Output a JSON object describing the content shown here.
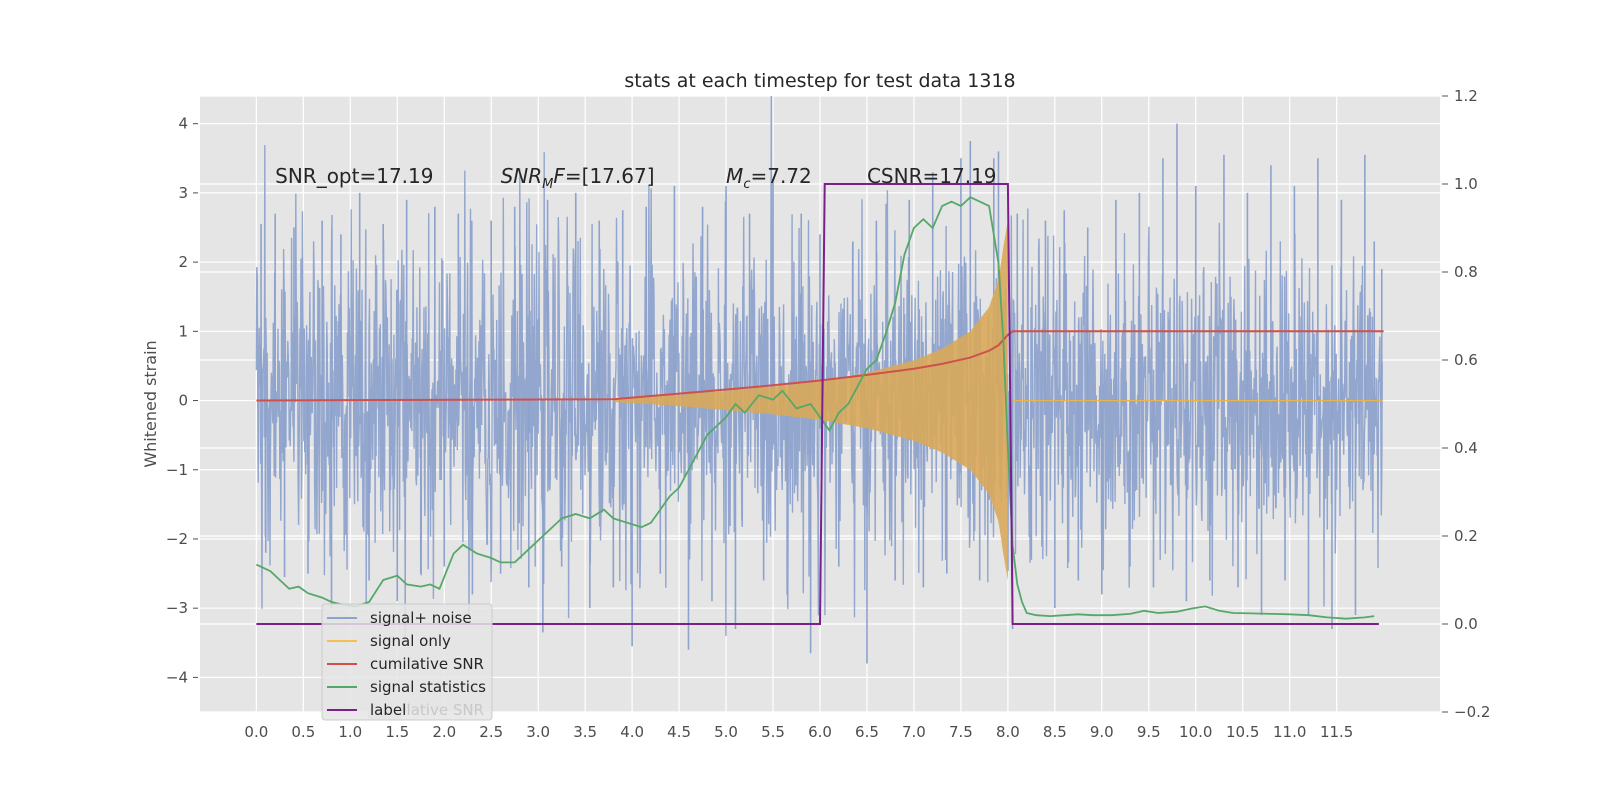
{
  "chart_data": {
    "type": "line",
    "title": "stats at each timestep for test data 1318",
    "xlabel": "",
    "ylabel": "Whitened strain",
    "xlim": [
      -0.6,
      12.6
    ],
    "ylim": [
      -4.5,
      4.4
    ],
    "y2lim": [
      -0.2,
      1.2
    ],
    "x_ticks": [
      0.0,
      0.5,
      1.0,
      1.5,
      2.0,
      2.5,
      3.0,
      3.5,
      4.0,
      4.5,
      5.0,
      5.5,
      6.0,
      6.5,
      7.0,
      7.5,
      8.0,
      8.5,
      9.0,
      9.5,
      10.0,
      10.5,
      11.0,
      11.5
    ],
    "x_tick_labels": [
      "0.0",
      "0.5",
      "1.0",
      "1.5",
      "2.0",
      "2.5",
      "3.0",
      "3.5",
      "4.0",
      "4.5",
      "5.0",
      "5.5",
      "6.0",
      "6.5",
      "7.0",
      "7.5",
      "8.0",
      "8.5",
      "9.0",
      "9.5",
      "10.0",
      "10.5",
      "11.0",
      "11.5"
    ],
    "y_ticks": [
      -4,
      -3,
      -2,
      -1,
      0,
      1,
      2,
      3,
      4
    ],
    "y_tick_labels": [
      "−4",
      "−3",
      "−2",
      "−1",
      "0",
      "1",
      "2",
      "3",
      "4"
    ],
    "y2_ticks": [
      -0.2,
      0.0,
      0.2,
      0.4,
      0.6,
      0.8,
      1.0,
      1.2
    ],
    "y2_tick_labels": [
      "−0.2",
      "0.0",
      "0.2",
      "0.4",
      "0.6",
      "0.8",
      "1.0",
      "1.2"
    ],
    "grid": true,
    "legend_position": "lower-left",
    "annotations": [
      {
        "text": "SNR_opt=17.19",
        "x": 0.2,
        "y": 3.2
      },
      {
        "text": "SNR",
        "sub": "M",
        "after": "F=[17.67]",
        "italic": true,
        "x": 2.6,
        "y": 3.2
      },
      {
        "text": "M",
        "sub": "c",
        "after": "=7.72",
        "italic": true,
        "x": 5.0,
        "y": 3.2
      },
      {
        "text": "CSNR=17.19",
        "x": 6.5,
        "y": 3.2
      }
    ],
    "series": [
      {
        "name": "signal+ noise",
        "color": "#8da2cc",
        "axis": "left",
        "description": "noise band",
        "x_range": [
          0.0,
          11.99
        ],
        "envelope_low": [
          [
            0.0,
            -1.8
          ],
          [
            3.0,
            -1.8
          ],
          [
            6.0,
            -1.8
          ],
          [
            12.0,
            -1.6
          ]
        ],
        "envelope_high": [
          [
            0.0,
            1.8
          ],
          [
            3.0,
            1.8
          ],
          [
            6.0,
            1.8
          ],
          [
            12.0,
            1.6
          ]
        ],
        "spikes": [
          [
            0.05,
            2.55
          ],
          [
            0.1,
            -2.2
          ],
          [
            0.2,
            2.7
          ],
          [
            0.3,
            -2.55
          ],
          [
            0.4,
            2.5
          ],
          [
            0.55,
            -2.5
          ],
          [
            0.7,
            2.6
          ],
          [
            0.8,
            -3.0
          ],
          [
            0.9,
            2.4
          ],
          [
            1.1,
            3.0
          ],
          [
            1.2,
            -2.6
          ],
          [
            1.35,
            2.55
          ],
          [
            1.5,
            -2.9
          ],
          [
            1.6,
            2.9
          ],
          [
            1.75,
            -2.5
          ],
          [
            1.9,
            2.8
          ],
          [
            2.0,
            -2.4
          ],
          [
            2.15,
            2.7
          ],
          [
            2.3,
            -2.8
          ],
          [
            2.5,
            2.6
          ],
          [
            2.6,
            -2.5
          ],
          [
            2.75,
            2.8
          ],
          [
            2.9,
            -2.7
          ],
          [
            3.05,
            -3.35
          ],
          [
            3.1,
            2.9
          ],
          [
            3.25,
            -2.4
          ],
          [
            3.4,
            3.0
          ],
          [
            3.55,
            -3.0
          ],
          [
            3.65,
            2.6
          ],
          [
            3.8,
            -2.7
          ],
          [
            3.9,
            2.75
          ],
          [
            4.0,
            -3.55
          ],
          [
            4.15,
            2.8
          ],
          [
            4.3,
            -2.5
          ],
          [
            4.45,
            3.1
          ],
          [
            4.6,
            -3.6
          ],
          [
            4.75,
            2.8
          ],
          [
            4.85,
            -2.9
          ],
          [
            5.0,
            3.1
          ],
          [
            5.1,
            -3.3
          ],
          [
            5.25,
            2.7
          ],
          [
            5.4,
            -2.6
          ],
          [
            5.5,
            3.15
          ],
          [
            5.65,
            -2.8
          ],
          [
            5.8,
            2.7
          ],
          [
            5.9,
            -3.65
          ],
          [
            6.0,
            2.4
          ],
          [
            6.2,
            -2.4
          ],
          [
            6.35,
            2.3
          ],
          [
            6.5,
            -3.8
          ],
          [
            6.6,
            2.6
          ],
          [
            6.8,
            -2.6
          ],
          [
            6.95,
            2.9
          ],
          [
            7.1,
            -2.7
          ],
          [
            7.2,
            3.3
          ],
          [
            7.35,
            -2.5
          ],
          [
            7.5,
            3.5
          ],
          [
            7.6,
            3.75
          ],
          [
            7.7,
            -2.6
          ],
          [
            7.85,
            3.5
          ],
          [
            7.9,
            3.6
          ],
          [
            8.05,
            -3.3
          ],
          [
            8.1,
            2.7
          ],
          [
            8.25,
            -2.3
          ],
          [
            8.4,
            2.6
          ],
          [
            8.5,
            -3.0
          ],
          [
            8.6,
            2.75
          ],
          [
            8.75,
            -2.6
          ],
          [
            8.85,
            2.5
          ],
          [
            9.0,
            -2.8
          ],
          [
            9.15,
            2.9
          ],
          [
            9.3,
            -2.4
          ],
          [
            9.4,
            3.0
          ],
          [
            9.55,
            -2.7
          ],
          [
            9.65,
            3.5
          ],
          [
            9.8,
            4.0
          ],
          [
            9.9,
            -2.9
          ],
          [
            10.0,
            3.1
          ],
          [
            10.15,
            -2.6
          ],
          [
            10.3,
            3.55
          ],
          [
            10.45,
            -2.7
          ],
          [
            10.55,
            3.0
          ],
          [
            10.7,
            -3.1
          ],
          [
            10.8,
            3.4
          ],
          [
            10.95,
            -2.6
          ],
          [
            11.05,
            3.1
          ],
          [
            11.2,
            -3.1
          ],
          [
            11.3,
            3.5
          ],
          [
            11.45,
            -3.3
          ],
          [
            11.55,
            2.9
          ],
          [
            11.7,
            -3.1
          ],
          [
            11.8,
            3.55
          ],
          [
            11.9,
            2.3
          ],
          [
            11.98,
            1.9
          ]
        ]
      },
      {
        "name": "signal only",
        "color": "#e9b44c",
        "axis": "left",
        "description": "chirp envelope",
        "x": [
          3.8,
          4.5,
          5.0,
          5.5,
          6.0,
          6.5,
          7.0,
          7.3,
          7.6,
          7.8,
          7.9,
          7.95,
          8.0
        ],
        "amplitude": [
          0.02,
          0.08,
          0.14,
          0.2,
          0.28,
          0.4,
          0.58,
          0.75,
          1.0,
          1.35,
          1.75,
          2.2,
          2.6
        ]
      },
      {
        "name": "cumilative SNR",
        "color": "#d0504a",
        "axis": "left",
        "x": [
          0.0,
          3.8,
          4.5,
          5.0,
          5.5,
          6.0,
          6.5,
          7.0,
          7.3,
          7.6,
          7.8,
          7.9,
          8.0,
          8.05,
          12.0
        ],
        "values": [
          0.0,
          0.02,
          0.1,
          0.16,
          0.22,
          0.29,
          0.37,
          0.46,
          0.53,
          0.62,
          0.72,
          0.8,
          0.95,
          1.0,
          1.0
        ]
      },
      {
        "name": "signal statistics",
        "color": "#55a868",
        "axis": "right",
        "x": [
          0.0,
          0.15,
          0.25,
          0.35,
          0.45,
          0.55,
          0.7,
          0.8,
          0.9,
          1.05,
          1.2,
          1.35,
          1.5,
          1.6,
          1.75,
          1.85,
          1.95,
          2.1,
          2.2,
          2.35,
          2.5,
          2.6,
          2.75,
          2.9,
          3.0,
          3.1,
          3.25,
          3.4,
          3.55,
          3.7,
          3.8,
          3.95,
          4.1,
          4.2,
          4.3,
          4.4,
          4.5,
          4.6,
          4.7,
          4.8,
          4.9,
          5.0,
          5.1,
          5.2,
          5.35,
          5.5,
          5.6,
          5.75,
          5.9,
          6.0,
          6.1,
          6.2,
          6.3,
          6.4,
          6.5,
          6.6,
          6.7,
          6.8,
          6.9,
          7.0,
          7.1,
          7.2,
          7.3,
          7.4,
          7.5,
          7.6,
          7.7,
          7.8,
          7.9,
          7.95,
          8.0,
          8.05,
          8.1,
          8.15,
          8.2,
          8.3,
          8.45,
          8.6,
          8.75,
          8.9,
          9.1,
          9.3,
          9.45,
          9.6,
          9.8,
          9.95,
          10.1,
          10.25,
          10.4,
          10.6,
          10.8,
          11.0,
          11.2,
          11.4,
          11.6,
          11.8,
          11.9
        ],
        "values": [
          0.135,
          0.12,
          0.1,
          0.08,
          0.085,
          0.07,
          0.06,
          0.05,
          0.045,
          0.04,
          0.05,
          0.1,
          0.11,
          0.09,
          0.085,
          0.09,
          0.08,
          0.16,
          0.18,
          0.16,
          0.15,
          0.14,
          0.14,
          0.17,
          0.19,
          0.21,
          0.24,
          0.25,
          0.24,
          0.26,
          0.24,
          0.23,
          0.22,
          0.23,
          0.26,
          0.29,
          0.31,
          0.35,
          0.39,
          0.43,
          0.45,
          0.47,
          0.5,
          0.48,
          0.52,
          0.51,
          0.53,
          0.49,
          0.5,
          0.47,
          0.44,
          0.48,
          0.5,
          0.54,
          0.58,
          0.6,
          0.66,
          0.73,
          0.84,
          0.9,
          0.92,
          0.9,
          0.95,
          0.96,
          0.95,
          0.97,
          0.96,
          0.95,
          0.82,
          0.65,
          0.4,
          0.18,
          0.09,
          0.05,
          0.025,
          0.02,
          0.018,
          0.02,
          0.022,
          0.02,
          0.02,
          0.023,
          0.03,
          0.025,
          0.028,
          0.035,
          0.04,
          0.03,
          0.025,
          0.024,
          0.023,
          0.022,
          0.02,
          0.015,
          0.012,
          0.015,
          0.018
        ]
      },
      {
        "name": "label",
        "color": "#7b1f8a",
        "axis": "right",
        "x": [
          0.0,
          6.0,
          6.05,
          8.0,
          8.05,
          11.95
        ],
        "values": [
          0.0,
          0.0,
          1.0,
          1.0,
          0.0,
          0.0
        ]
      }
    ],
    "legend_items": [
      "signal+ noise",
      "signal only",
      "cumilative SNR",
      "signal statistics",
      "label"
    ],
    "legend_ghost_text": "cumilative SNR"
  }
}
